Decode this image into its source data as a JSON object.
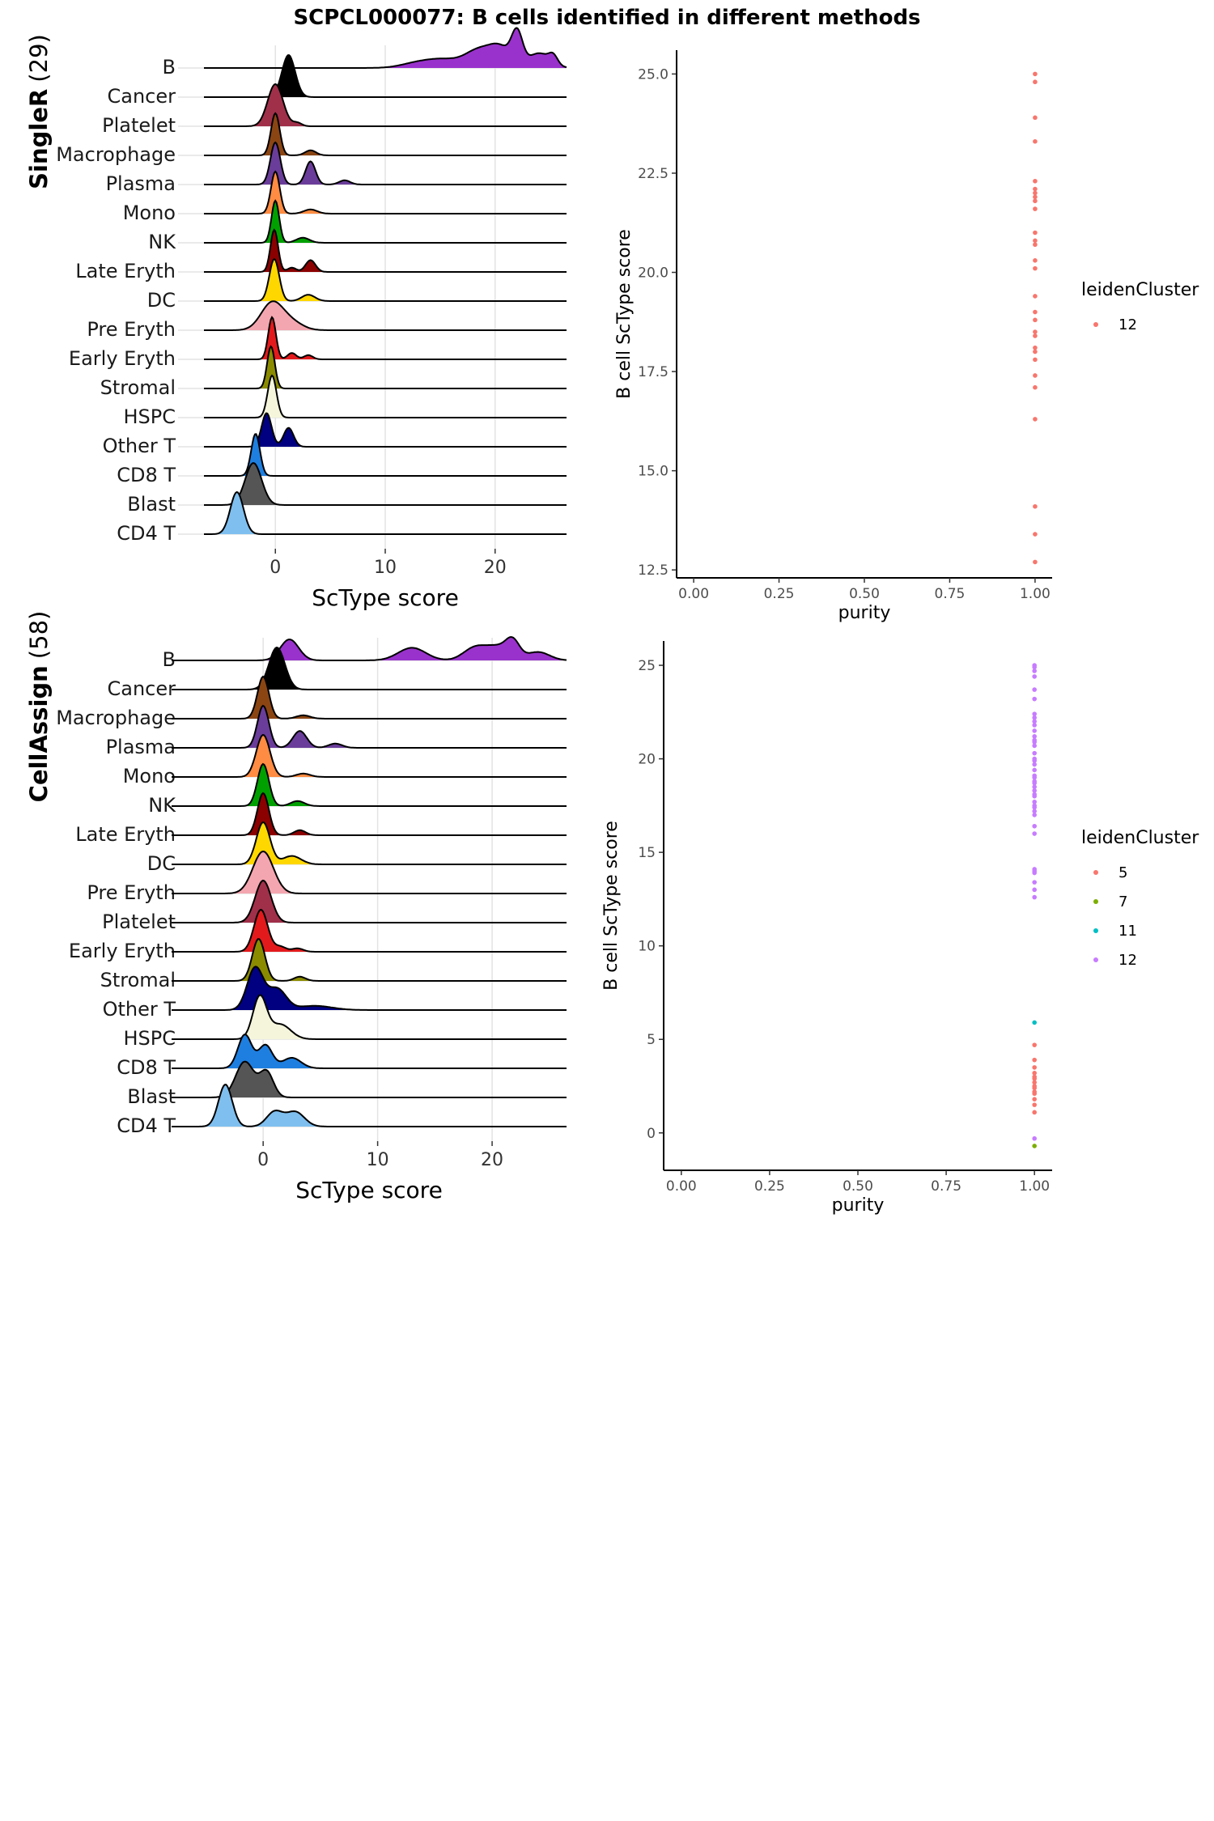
{
  "title": "SCPCL000077: B cells identified in different methods",
  "panels": [
    {
      "method": "SingleR",
      "count_label": "(29)",
      "ridge": {
        "type": "ridgeline",
        "xlabel": "ScType score",
        "xlim": [
          -6.5,
          26.5
        ],
        "xticks": [
          0,
          10,
          20
        ],
        "rows": [
          {
            "label": "B",
            "color": "#9932CC",
            "peaks": [
              [
                13,
                1.5,
                0.12
              ],
              [
                15.5,
                1.5,
                0.18
              ],
              [
                18.5,
                1.2,
                0.4
              ],
              [
                20.5,
                1.0,
                0.45
              ],
              [
                22,
                0.5,
                0.75
              ],
              [
                24,
                1.0,
                0.35
              ],
              [
                25.3,
                0.4,
                0.2
              ]
            ]
          },
          {
            "label": "Cancer",
            "color": "#000000",
            "peaks": [
              [
                1.2,
                0.6,
                1.0
              ]
            ]
          },
          {
            "label": "Platelet",
            "color": "#A0304A",
            "peaks": [
              [
                0.0,
                0.7,
                1.0
              ],
              [
                2.0,
                0.4,
                0.08
              ]
            ]
          },
          {
            "label": "Macrophage",
            "color": "#8B4513",
            "peaks": [
              [
                0.0,
                0.4,
                1.0
              ],
              [
                3.2,
                0.5,
                0.12
              ]
            ]
          },
          {
            "label": "Plasma",
            "color": "#6A3D9A",
            "peaks": [
              [
                0.0,
                0.45,
                1.0
              ],
              [
                3.2,
                0.45,
                0.55
              ],
              [
                6.3,
                0.5,
                0.1
              ]
            ]
          },
          {
            "label": "Mono",
            "color": "#FF8C42",
            "peaks": [
              [
                0.0,
                0.4,
                1.0
              ],
              [
                3.2,
                0.6,
                0.1
              ]
            ]
          },
          {
            "label": "NK",
            "color": "#00A000",
            "peaks": [
              [
                0.0,
                0.35,
                1.0
              ],
              [
                2.5,
                0.6,
                0.12
              ]
            ]
          },
          {
            "label": "Late Eryth",
            "color": "#8B0000",
            "peaks": [
              [
                -0.1,
                0.35,
                1.0
              ],
              [
                1.5,
                0.4,
                0.1
              ],
              [
                3.2,
                0.45,
                0.28
              ]
            ]
          },
          {
            "label": "DC",
            "color": "#FFD700",
            "peaks": [
              [
                -0.1,
                0.45,
                1.0
              ],
              [
                3.0,
                0.6,
                0.15
              ]
            ]
          },
          {
            "label": "Pre Eryth",
            "color": "#F4A6B0",
            "peaks": [
              [
                -0.3,
                1.0,
                0.65
              ],
              [
                1.5,
                1.0,
                0.18
              ]
            ]
          },
          {
            "label": "Early Eryth",
            "color": "#E31A1C",
            "peaks": [
              [
                -0.3,
                0.35,
                1.0
              ],
              [
                1.5,
                0.4,
                0.15
              ],
              [
                3.0,
                0.4,
                0.1
              ]
            ]
          },
          {
            "label": "Stromal",
            "color": "#8B8B00",
            "peaks": [
              [
                -0.4,
                0.35,
                1.0
              ]
            ]
          },
          {
            "label": "HSPC",
            "color": "#F5F5DC",
            "peaks": [
              [
                -0.3,
                0.4,
                1.0
              ]
            ]
          },
          {
            "label": "Other T",
            "color": "#000080",
            "peaks": [
              [
                -0.8,
                0.45,
                0.8
              ],
              [
                1.2,
                0.45,
                0.45
              ]
            ]
          },
          {
            "label": "CD8 T",
            "color": "#1E7FE0",
            "peaks": [
              [
                -1.8,
                0.4,
                1.0
              ]
            ]
          },
          {
            "label": "Blast",
            "color": "#555555",
            "peaks": [
              [
                -2.0,
                0.75,
                1.0
              ]
            ]
          },
          {
            "label": "CD4 T",
            "color": "#7FBFEF",
            "peaks": [
              [
                -3.5,
                0.6,
                1.0
              ]
            ]
          }
        ]
      },
      "scatter": {
        "type": "scatter",
        "xlabel": "purity",
        "ylabel": "B cell ScType score",
        "xlim": [
          -0.05,
          1.05
        ],
        "ylim": [
          12.3,
          25.6
        ],
        "xticks": [
          "0.00",
          "0.25",
          "0.50",
          "0.75",
          "1.00"
        ],
        "yticks": [
          "12.5",
          "15.0",
          "17.5",
          "20.0",
          "22.5",
          "25.0"
        ],
        "legend_title": "leidenCluster",
        "legend": [
          {
            "label": "12",
            "color": "#F8766D"
          }
        ],
        "series": [
          {
            "name": "12",
            "color": "#F8766D",
            "x": [
              1,
              1,
              1,
              1,
              1,
              1,
              1,
              1,
              1,
              1,
              1,
              1,
              1,
              1,
              1,
              1,
              1,
              1,
              1,
              1,
              1,
              1,
              1,
              1,
              1,
              1,
              1,
              1,
              1
            ],
            "y": [
              25.0,
              24.8,
              23.9,
              23.3,
              22.3,
              22.1,
              21.9,
              21.8,
              21.6,
              21.0,
              20.7,
              20.3,
              20.1,
              19.4,
              19.0,
              18.8,
              18.5,
              18.4,
              18.1,
              17.8,
              17.4,
              17.1,
              16.3,
              14.1,
              13.4,
              12.7,
              22.0,
              20.8,
              18.0
            ]
          }
        ]
      }
    },
    {
      "method": "CellAssign",
      "count_label": "(58)",
      "ridge": {
        "type": "ridgeline",
        "xlabel": "ScType score",
        "xlim": [
          -8,
          26.5
        ],
        "xticks": [
          0,
          10,
          20
        ],
        "rows": [
          {
            "label": "B",
            "color": "#9932CC",
            "peaks": [
              [
                2.3,
                0.8,
                0.5
              ],
              [
                13,
                1.2,
                0.3
              ],
              [
                18.5,
                1.0,
                0.3
              ],
              [
                20.5,
                1.0,
                0.3
              ],
              [
                21.8,
                0.6,
                0.4
              ],
              [
                24,
                1.0,
                0.2
              ]
            ]
          },
          {
            "label": "Cancer",
            "color": "#000000",
            "peaks": [
              [
                1.2,
                0.7,
                1.0
              ]
            ]
          },
          {
            "label": "Macrophage",
            "color": "#8B4513",
            "peaks": [
              [
                0.0,
                0.5,
                1.0
              ],
              [
                3.5,
                0.6,
                0.08
              ]
            ]
          },
          {
            "label": "Plasma",
            "color": "#6A3D9A",
            "peaks": [
              [
                0.0,
                0.5,
                1.0
              ],
              [
                3.2,
                0.6,
                0.4
              ],
              [
                6.3,
                0.6,
                0.1
              ]
            ]
          },
          {
            "label": "Mono",
            "color": "#FF8C42",
            "peaks": [
              [
                0.0,
                0.6,
                1.0
              ],
              [
                3.5,
                0.6,
                0.08
              ]
            ]
          },
          {
            "label": "NK",
            "color": "#00A000",
            "peaks": [
              [
                0.0,
                0.5,
                1.0
              ],
              [
                3.0,
                0.6,
                0.12
              ]
            ]
          },
          {
            "label": "Late Eryth",
            "color": "#8B0000",
            "peaks": [
              [
                0.0,
                0.5,
                1.0
              ],
              [
                3.2,
                0.5,
                0.12
              ]
            ]
          },
          {
            "label": "DC",
            "color": "#FFD700",
            "peaks": [
              [
                0.0,
                0.6,
                1.0
              ],
              [
                2.5,
                0.8,
                0.2
              ]
            ]
          },
          {
            "label": "Pre Eryth",
            "color": "#F4A6B0",
            "peaks": [
              [
                0.0,
                0.9,
                1.0
              ]
            ]
          },
          {
            "label": "Platelet",
            "color": "#A0304A",
            "peaks": [
              [
                0.0,
                0.7,
                1.0
              ]
            ]
          },
          {
            "label": "Early Eryth",
            "color": "#E31A1C",
            "peaks": [
              [
                -0.2,
                0.6,
                1.0
              ],
              [
                1.5,
                0.5,
                0.12
              ],
              [
                3.0,
                0.5,
                0.08
              ]
            ]
          },
          {
            "label": "Stromal",
            "color": "#8B8B00",
            "peaks": [
              [
                -0.4,
                0.55,
                1.0
              ],
              [
                3.2,
                0.5,
                0.1
              ]
            ]
          },
          {
            "label": "Other T",
            "color": "#000080",
            "peaks": [
              [
                -0.7,
                0.7,
                1.0
              ],
              [
                1.2,
                0.8,
                0.5
              ],
              [
                4.5,
                1.5,
                0.1
              ]
            ]
          },
          {
            "label": "HSPC",
            "color": "#F5F5DC",
            "peaks": [
              [
                -0.3,
                0.6,
                1.0
              ],
              [
                1.5,
                0.9,
                0.35
              ]
            ]
          },
          {
            "label": "CD8 T",
            "color": "#1E7FE0",
            "peaks": [
              [
                -1.6,
                0.6,
                0.8
              ],
              [
                0.2,
                0.6,
                0.55
              ],
              [
                2.5,
                0.8,
                0.25
              ]
            ]
          },
          {
            "label": "Blast",
            "color": "#555555",
            "peaks": [
              [
                -1.6,
                0.8,
                0.85
              ],
              [
                0.3,
                0.6,
                0.6
              ]
            ]
          },
          {
            "label": "CD4 T",
            "color": "#7FBFEF",
            "peaks": [
              [
                -3.3,
                0.6,
                1.0
              ],
              [
                1.0,
                0.7,
                0.35
              ],
              [
                2.8,
                0.8,
                0.35
              ]
            ]
          }
        ]
      },
      "scatter": {
        "type": "scatter",
        "xlabel": "purity",
        "ylabel": "B cell ScType score",
        "xlim": [
          -0.05,
          1.05
        ],
        "ylim": [
          -2.0,
          26.3
        ],
        "xticks": [
          "0.00",
          "0.25",
          "0.50",
          "0.75",
          "1.00"
        ],
        "yticks": [
          "0",
          "5",
          "10",
          "15",
          "20",
          "25"
        ],
        "legend_title": "leidenCluster",
        "legend": [
          {
            "label": "5",
            "color": "#F8766D"
          },
          {
            "label": "7",
            "color": "#7CAE00"
          },
          {
            "label": "11",
            "color": "#00BFC4"
          },
          {
            "label": "12",
            "color": "#C77CFF"
          }
        ],
        "series": [
          {
            "name": "5",
            "color": "#F8766D",
            "x": [
              1,
              1,
              1,
              1,
              1,
              1,
              1,
              1,
              1,
              1,
              1,
              1,
              1,
              1
            ],
            "y": [
              4.7,
              3.5,
              3.2,
              3.0,
              2.9,
              2.7,
              2.5,
              2.4,
              2.2,
              2.1,
              1.8,
              1.5,
              1.1,
              3.9
            ]
          },
          {
            "name": "7",
            "color": "#7CAE00",
            "x": [
              1
            ],
            "y": [
              -0.7
            ]
          },
          {
            "name": "11",
            "color": "#00BFC4",
            "x": [
              1
            ],
            "y": [
              5.9
            ]
          },
          {
            "name": "12",
            "color": "#C77CFF",
            "x": [
              1,
              1,
              1,
              1,
              1,
              1,
              1,
              1,
              1,
              1,
              1,
              1,
              1,
              1,
              1,
              1,
              1,
              1,
              1,
              1,
              1,
              1,
              1,
              1,
              1,
              1,
              1,
              1,
              1,
              1,
              1,
              1,
              1,
              1,
              1,
              1,
              1,
              1,
              1,
              1,
              1,
              1
            ],
            "y": [
              25.0,
              24.7,
              24.4,
              23.7,
              23.2,
              22.2,
              22.0,
              21.8,
              21.5,
              21.0,
              20.7,
              20.3,
              20.0,
              19.7,
              19.4,
              19.1,
              18.8,
              18.5,
              18.3,
              18.0,
              17.7,
              17.4,
              17.0,
              16.4,
              16.0,
              14.1,
              13.9,
              13.4,
              13.0,
              12.6,
              -0.3,
              22.4,
              21.2,
              19.9,
              19.0,
              18.1,
              17.2,
              24.9,
              20.9,
              18.7,
              17.5,
              14.0
            ]
          }
        ]
      }
    }
  ]
}
